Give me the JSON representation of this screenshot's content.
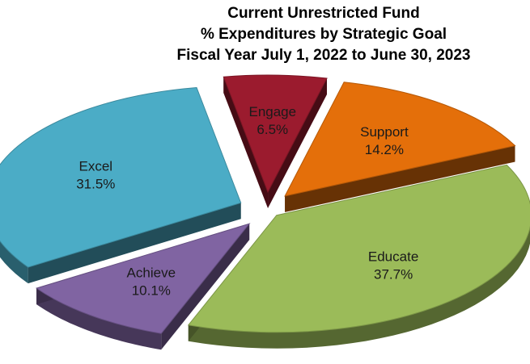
{
  "chart_data": {
    "type": "pie",
    "title": [
      "Current Unrestricted Fund",
      "% Expenditures by Strategic Goal",
      "Fiscal Year July 1, 2022 to June 30, 2023"
    ],
    "slices": [
      {
        "label": "Engage",
        "value": 6.5,
        "value_label": "6.5%",
        "color": "#9b1b2e"
      },
      {
        "label": "Support",
        "value": 14.2,
        "value_label": "14.2%",
        "color": "#e46f0a"
      },
      {
        "label": "Educate",
        "value": 37.7,
        "value_label": "37.7%",
        "color": "#9bbb59"
      },
      {
        "label": "Achieve",
        "value": 10.1,
        "value_label": "10.1%",
        "color": "#8064a2"
      },
      {
        "label": "Excel",
        "value": 31.5,
        "value_label": "31.5%",
        "color": "#4bacc6"
      }
    ],
    "exploded": true,
    "three_d": true,
    "legend": "none"
  }
}
